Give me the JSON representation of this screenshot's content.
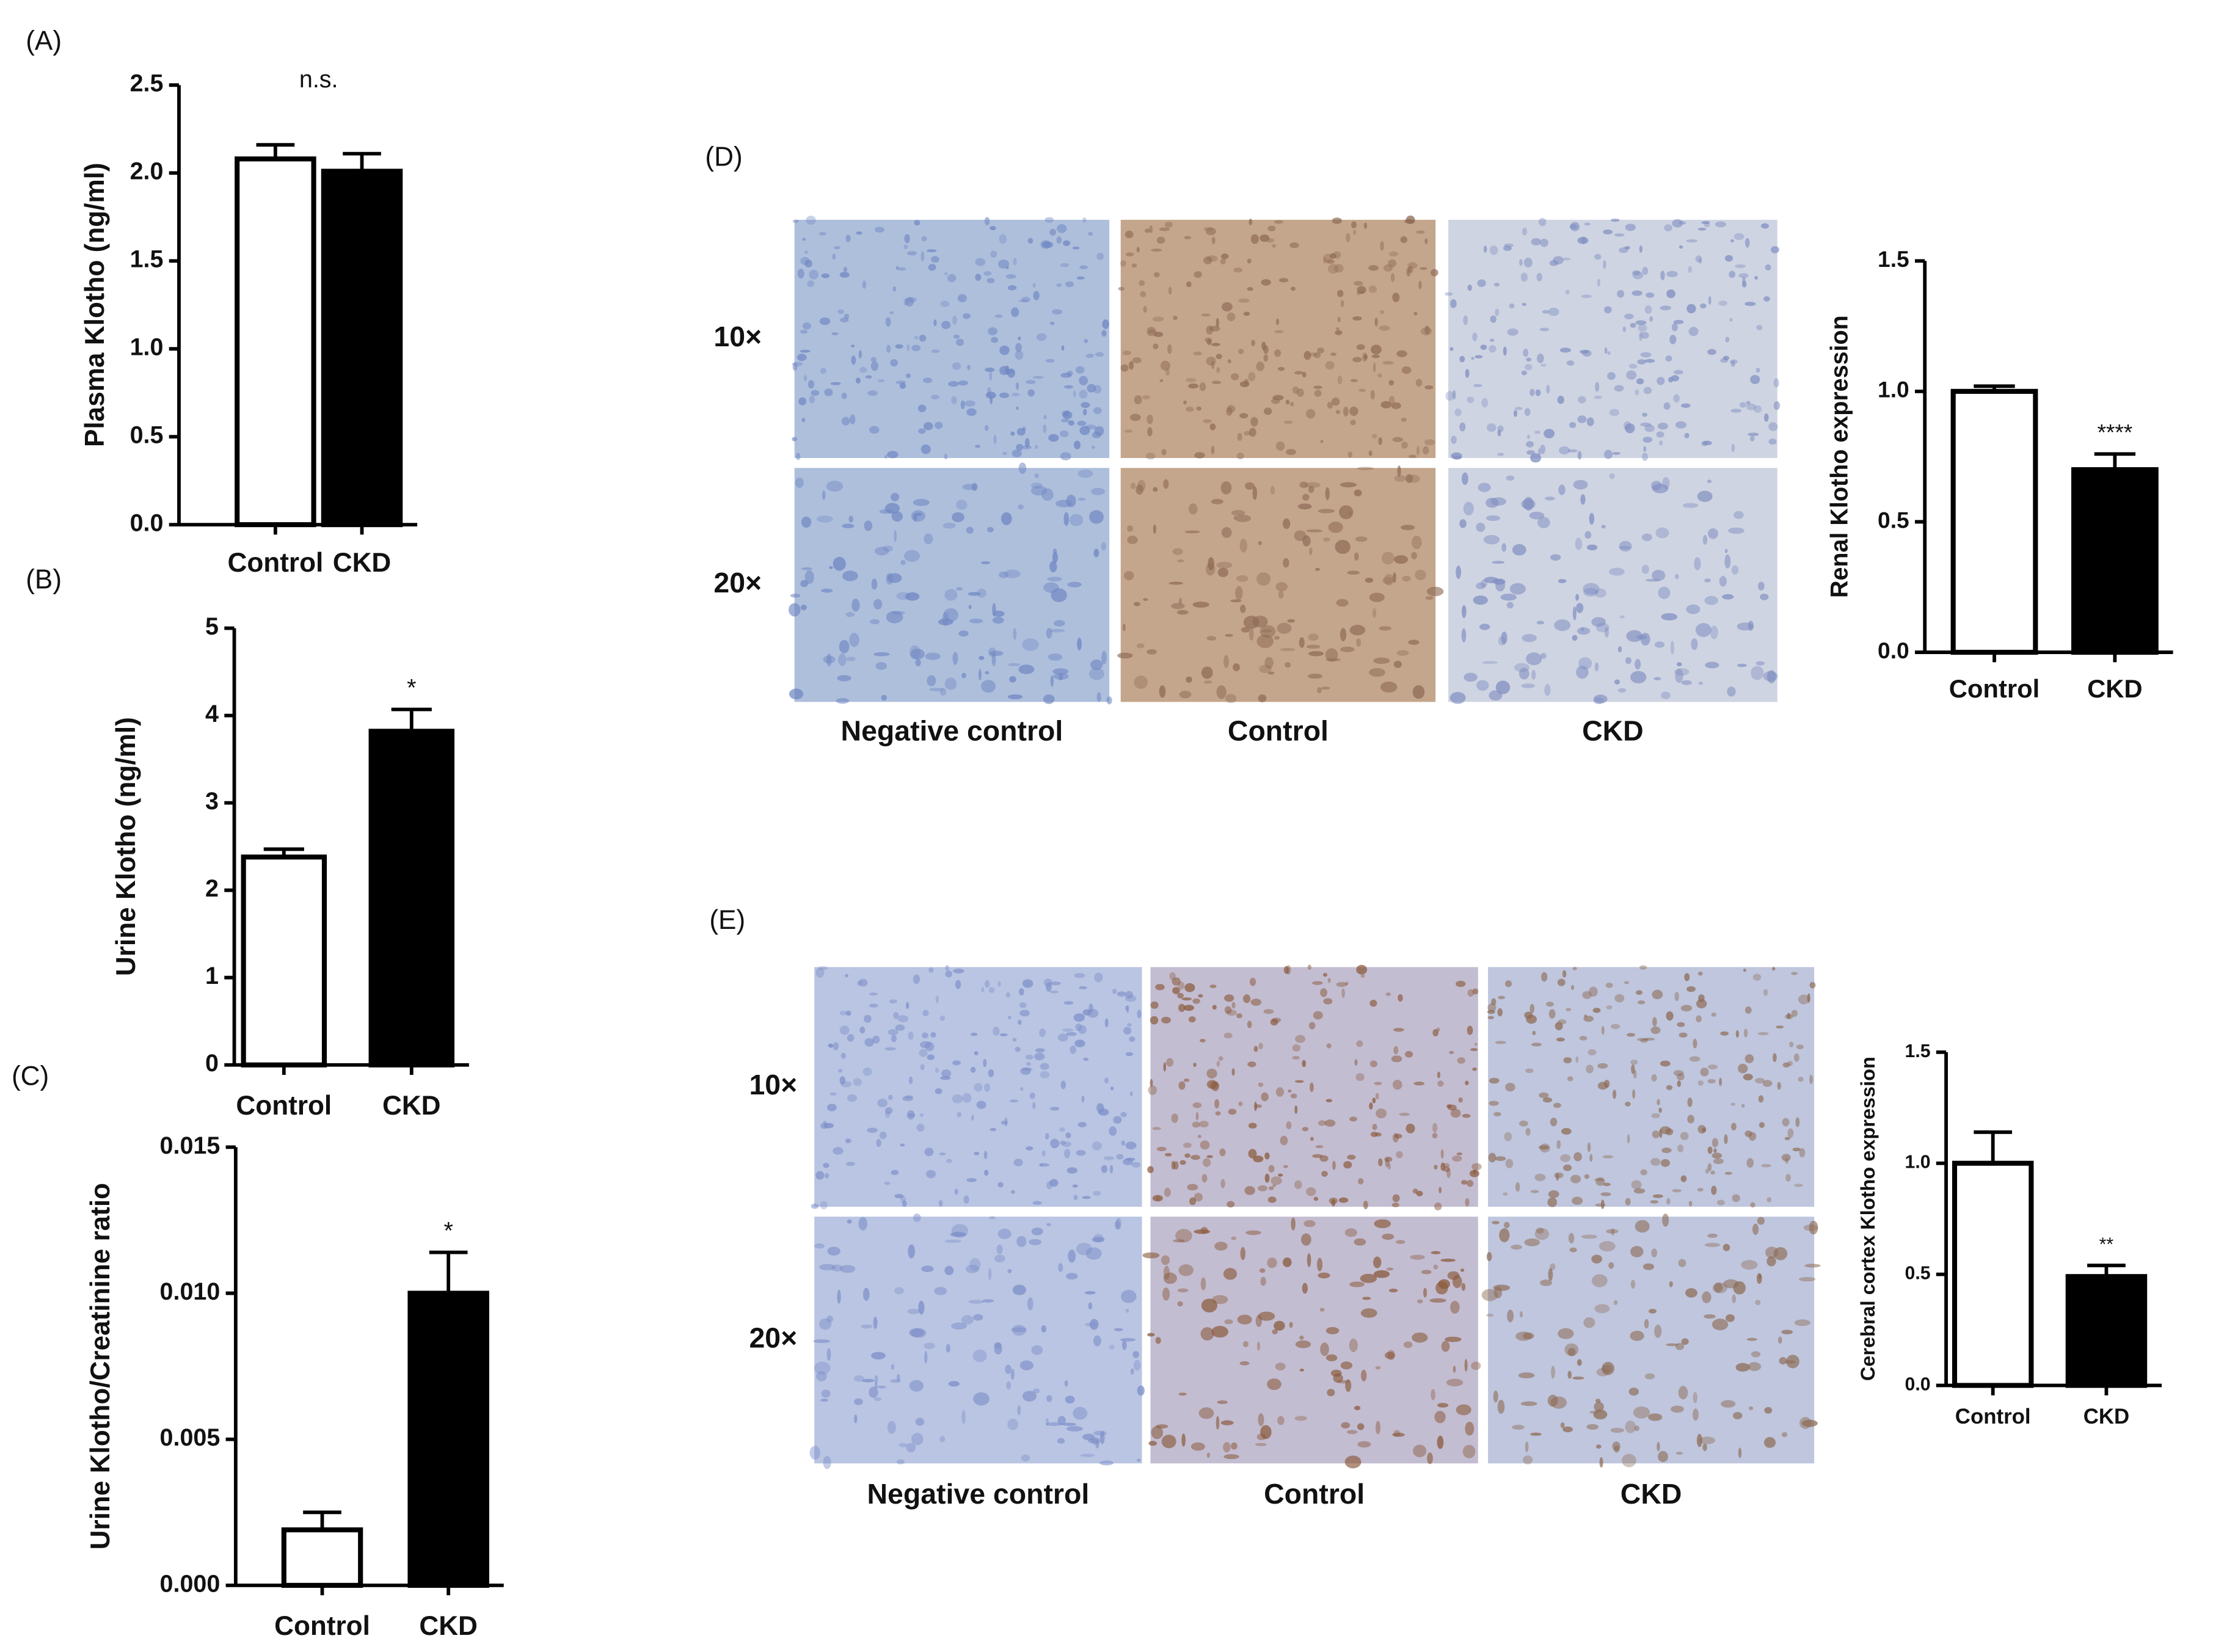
{
  "chart_data": [
    {
      "type": "bar",
      "label": "(A)",
      "ylabel": "Plasma Klotho (ng/ml)",
      "categories": [
        "Control",
        "CKD"
      ],
      "values": [
        2.08,
        2.01
      ],
      "errors": [
        0.08,
        0.1
      ],
      "colors": [
        "#ffffff",
        "#000000"
      ],
      "comparison_label": "n.s.",
      "ylim": [
        0,
        2.5
      ],
      "yticks": [
        {
          "value": 0,
          "label": "0.0"
        },
        0.5,
        {
          "value": 1,
          "label": "1.0"
        },
        1.5,
        {
          "value": 2,
          "label": "2.0"
        },
        2.5
      ]
    },
    {
      "type": "bar",
      "label": "(B)",
      "ylabel": "Urine Klotho (ng/ml)",
      "categories": [
        "Control",
        "CKD"
      ],
      "values": [
        2.38,
        3.82
      ],
      "errors": [
        0.09,
        0.25
      ],
      "colors": [
        "#ffffff",
        "#000000"
      ],
      "significance": [
        null,
        "*"
      ],
      "ylim": [
        0,
        5
      ],
      "yticks": [
        0,
        1,
        2,
        3,
        4,
        5
      ]
    },
    {
      "type": "bar",
      "label": "(C)",
      "ylabel": "Urine Klotho/Creatinine ratio",
      "categories": [
        "Control",
        "CKD"
      ],
      "values": [
        0.0019,
        0.01
      ],
      "errors": [
        0.0006,
        0.0014
      ],
      "colors": [
        "#ffffff",
        "#000000"
      ],
      "significance": [
        null,
        "*"
      ],
      "ylim": [
        0,
        0.015
      ],
      "yticks": [
        {
          "value": 0,
          "label": "0.000"
        },
        0.005,
        {
          "value": 0.01,
          "label": "0.010"
        },
        0.015
      ]
    },
    {
      "type": "bar",
      "label": "(D)",
      "image_rows": [
        "10×",
        "20×"
      ],
      "image_columns": [
        "Negative control",
        "Control",
        "CKD"
      ],
      "ylabel": "Renal Klotho expression",
      "categories": [
        "Control",
        "CKD"
      ],
      "values": [
        1.0,
        0.7
      ],
      "errors": [
        0.02,
        0.06
      ],
      "colors": [
        "#ffffff",
        "#000000"
      ],
      "significance": [
        null,
        "****"
      ],
      "ylim": [
        0,
        1.5
      ],
      "yticks": [
        {
          "value": 0,
          "label": "0.0"
        },
        0.5,
        {
          "value": 1,
          "label": "1.0"
        },
        1.5
      ]
    },
    {
      "type": "bar",
      "label": "(E)",
      "image_rows": [
        "10×",
        "20×"
      ],
      "image_columns": [
        "Negative control",
        "Control",
        "CKD"
      ],
      "ylabel": "Cerebral cortex Klotho expression",
      "categories": [
        "Control",
        "CKD"
      ],
      "values": [
        1.0,
        0.49
      ],
      "errors": [
        0.14,
        0.05
      ],
      "colors": [
        "#ffffff",
        "#000000"
      ],
      "significance": [
        null,
        "**"
      ],
      "ylim": [
        0,
        1.5
      ],
      "yticks": [
        {
          "value": 0,
          "label": "0.0"
        },
        0.5,
        {
          "value": 1,
          "label": "1.0"
        },
        1.5
      ]
    }
  ]
}
